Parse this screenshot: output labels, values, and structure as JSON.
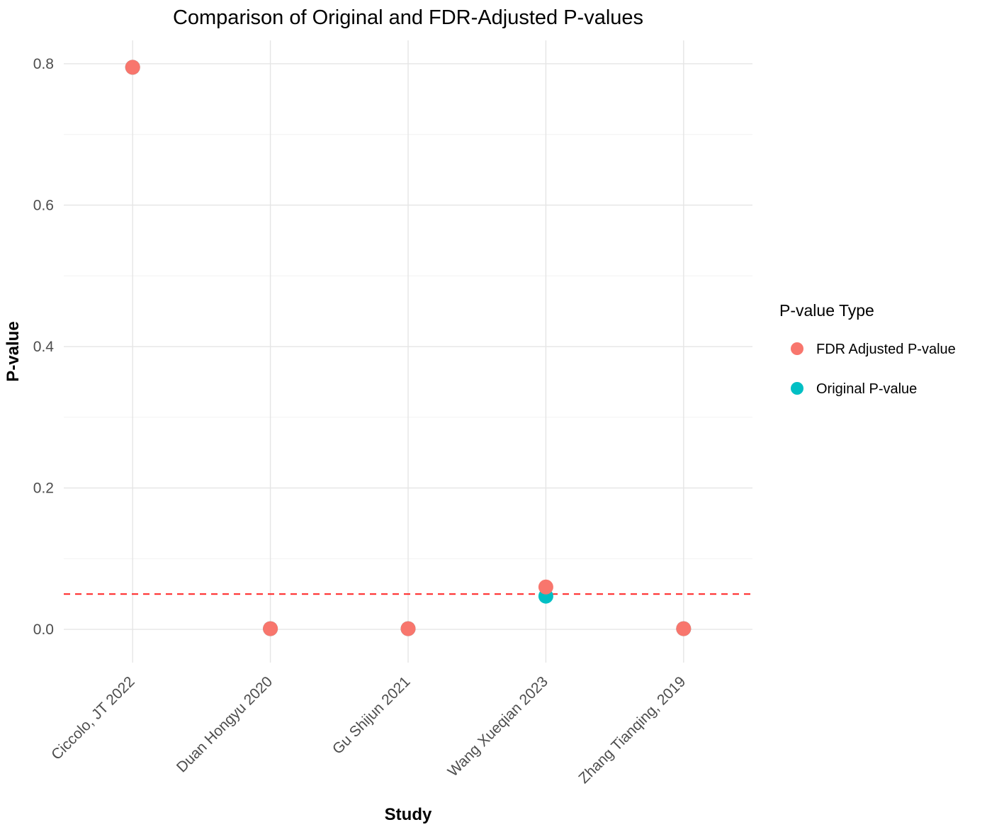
{
  "chart_data": {
    "type": "scatter",
    "title": "Comparison of Original and FDR-Adjusted P-values",
    "xlabel": "Study",
    "ylabel": "P-value",
    "categories": [
      "Ciccolo, JT 2022",
      "Duan Hongyu 2020",
      "Gu Shijun 2021",
      "Wang Xueqian 2023",
      "Zhang Tianqing, 2019"
    ],
    "series": [
      {
        "name": "FDR Adjusted P-value",
        "color": "#F8766D",
        "values": [
          0.795,
          0.001,
          0.001,
          0.06,
          0.001
        ]
      },
      {
        "name": "Original P-value",
        "color": "#00BFC4",
        "values": [
          0.795,
          0.001,
          0.001,
          0.047,
          0.001
        ]
      }
    ],
    "yticks": [
      "0.0",
      "0.2",
      "0.4",
      "0.6",
      "0.8"
    ],
    "ytick_values": [
      0.0,
      0.2,
      0.4,
      0.6,
      0.8
    ],
    "yminor_values": [
      0.1,
      0.3,
      0.5,
      0.7
    ],
    "ylim": [
      -0.047,
      0.833
    ],
    "threshold": {
      "value": 0.05,
      "color": "#ff2222",
      "style": "dashed"
    },
    "grid": true,
    "legend": {
      "title": "P-value Type",
      "position": "right",
      "entries": [
        {
          "label": "FDR Adjusted P-value",
          "color": "#F8766D"
        },
        {
          "label": "Original P-value",
          "color": "#00BFC4"
        }
      ]
    },
    "style": {
      "grid_major_color": "#e5e5e5",
      "grid_minor_color": "#f2f2f2",
      "tick_label_color": "#4d4d4d",
      "text_color": "#000000",
      "point_radius": 10.5
    }
  }
}
